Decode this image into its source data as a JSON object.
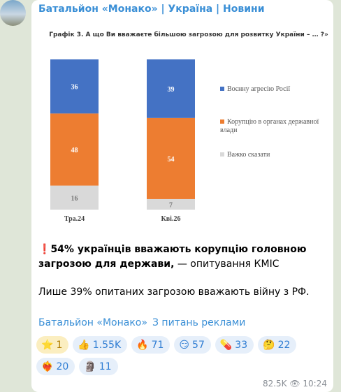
{
  "channel": {
    "name": "Батальйон «Монако» | Україна | Новини"
  },
  "chart_data": {
    "type": "stacked-bar",
    "title": "Графік 3. А що Ви вважаєте більшою загрозою для розвитку України – … ?»",
    "categories": [
      "Тра.24",
      "Кві.26"
    ],
    "series": [
      {
        "name": "Воєнну агресію Росії",
        "color": "#4472c4",
        "values": [
          36,
          39
        ]
      },
      {
        "name": "Корупцію в органах державної влади",
        "color": "#ed7d31",
        "values": [
          48,
          54
        ]
      },
      {
        "name": "Важко сказати",
        "color": "#d9d9d9",
        "values": [
          16,
          7
        ]
      }
    ]
  },
  "post": {
    "emoji": "❗",
    "bold": "54% українців вважають корупцію головною загрозою для держави,",
    "rest": " — опитування КМІС",
    "paragraph": "Лише 39% опитаних загрозою вважають війну з РФ."
  },
  "links": [
    "Батальйон «Монако»",
    "З питань реклами"
  ],
  "reactions": [
    {
      "emoji": "⭐",
      "count": "1"
    },
    {
      "emoji": "👍",
      "count": "1.55K"
    },
    {
      "emoji": "🔥",
      "count": "71"
    },
    {
      "emoji": "😏",
      "count": "57"
    },
    {
      "emoji": "💊",
      "count": "33"
    },
    {
      "emoji": "🤔",
      "count": "22"
    },
    {
      "emoji": "❤️‍🔥",
      "count": "20"
    },
    {
      "emoji": "🗿",
      "count": "11"
    }
  ],
  "footer": {
    "views": "82.5K",
    "time": "10:24"
  }
}
